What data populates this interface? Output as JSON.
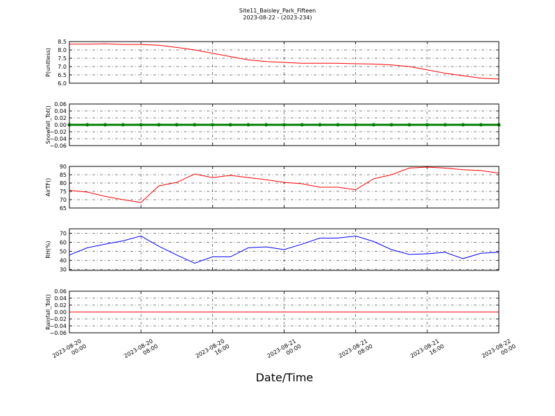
{
  "title": "Site11_Baisley_Park_Fifteen",
  "subtitle": "2023-08-22 - (2023-234)",
  "xlabel": "Date/Time",
  "chart_data": [
    {
      "type": "line",
      "ylabel": "P(unitless)",
      "grid": true,
      "x": [
        "2023-08-20 00:00",
        "2023-08-20 02:00",
        "2023-08-20 04:00",
        "2023-08-20 06:00",
        "2023-08-20 08:00",
        "2023-08-20 10:00",
        "2023-08-20 12:00",
        "2023-08-20 14:00",
        "2023-08-20 16:00",
        "2023-08-20 18:00",
        "2023-08-20 20:00",
        "2023-08-20 22:00",
        "2023-08-21 00:00",
        "2023-08-21 02:00",
        "2023-08-21 04:00",
        "2023-08-21 06:00",
        "2023-08-21 08:00",
        "2023-08-21 10:00",
        "2023-08-21 12:00",
        "2023-08-21 14:00",
        "2023-08-21 16:00",
        "2023-08-21 18:00",
        "2023-08-21 20:00",
        "2023-08-21 22:00",
        "2023-08-22 00:00"
      ],
      "xlim": [
        "2023-08-20 00:00",
        "2023-08-22 00:00"
      ],
      "xticks": [
        "2023-08-20 00:00",
        "2023-08-20 08:00",
        "2023-08-20 16:00",
        "2023-08-21 00:00",
        "2023-08-21 08:00",
        "2023-08-21 16:00",
        "2023-08-22 00:00"
      ],
      "ylim": [
        6,
        8.5
      ],
      "yticks": [
        {
          "value": 6,
          "label": "6.0"
        },
        6.5,
        {
          "value": 7,
          "label": "7.0"
        },
        7.5,
        {
          "value": 8,
          "label": "8.0"
        },
        8.5
      ],
      "series": [
        {
          "color": "#ff0000",
          "values": [
            8.35,
            8.35,
            8.37,
            8.33,
            8.33,
            8.28,
            8.15,
            8.0,
            7.8,
            7.6,
            7.4,
            7.3,
            7.25,
            7.2,
            7.2,
            7.2,
            7.17,
            7.15,
            7.1,
            7.0,
            6.8,
            6.6,
            6.45,
            6.3,
            6.25
          ]
        }
      ]
    },
    {
      "type": "line",
      "ylabel": "Snowfall_Tot()",
      "grid": true,
      "markers": true,
      "x": [
        "2023-08-20 00:00",
        "2023-08-20 02:00",
        "2023-08-20 04:00",
        "2023-08-20 06:00",
        "2023-08-20 08:00",
        "2023-08-20 10:00",
        "2023-08-20 12:00",
        "2023-08-20 14:00",
        "2023-08-20 16:00",
        "2023-08-20 18:00",
        "2023-08-20 20:00",
        "2023-08-20 22:00",
        "2023-08-21 00:00",
        "2023-08-21 02:00",
        "2023-08-21 04:00",
        "2023-08-21 06:00",
        "2023-08-21 08:00",
        "2023-08-21 10:00",
        "2023-08-21 12:00",
        "2023-08-21 14:00",
        "2023-08-21 16:00",
        "2023-08-21 18:00",
        "2023-08-21 20:00",
        "2023-08-21 22:00",
        "2023-08-22 00:00"
      ],
      "xlim": [
        "2023-08-20 00:00",
        "2023-08-22 00:00"
      ],
      "xticks": [
        "2023-08-20 00:00",
        "2023-08-20 08:00",
        "2023-08-20 16:00",
        "2023-08-21 00:00",
        "2023-08-21 08:00",
        "2023-08-21 16:00",
        "2023-08-22 00:00"
      ],
      "ylim": [
        -0.06,
        0.06
      ],
      "yticks": [
        {
          "value": -0.06,
          "label": "−0.06"
        },
        {
          "value": -0.04,
          "label": "−0.04"
        },
        {
          "value": -0.02,
          "label": "−0.02"
        },
        {
          "value": 0,
          "label": "0.00"
        },
        0.02,
        0.04,
        0.06
      ],
      "series": [
        {
          "color": "#008000",
          "values": [
            0,
            0,
            0,
            0,
            0,
            0,
            0,
            0,
            0,
            0,
            0,
            0,
            0,
            0,
            0,
            0,
            0,
            0,
            0,
            0,
            0,
            0,
            0,
            0,
            0
          ]
        }
      ]
    },
    {
      "type": "line",
      "ylabel": "AirTF()",
      "grid": true,
      "x": [
        "2023-08-20 00:00",
        "2023-08-20 02:00",
        "2023-08-20 04:00",
        "2023-08-20 06:00",
        "2023-08-20 08:00",
        "2023-08-20 10:00",
        "2023-08-20 12:00",
        "2023-08-20 14:00",
        "2023-08-20 16:00",
        "2023-08-20 18:00",
        "2023-08-20 20:00",
        "2023-08-20 22:00",
        "2023-08-21 00:00",
        "2023-08-21 02:00",
        "2023-08-21 04:00",
        "2023-08-21 06:00",
        "2023-08-21 08:00",
        "2023-08-21 10:00",
        "2023-08-21 12:00",
        "2023-08-21 14:00",
        "2023-08-21 16:00",
        "2023-08-21 18:00",
        "2023-08-21 20:00",
        "2023-08-21 22:00",
        "2023-08-22 00:00"
      ],
      "xlim": [
        "2023-08-20 00:00",
        "2023-08-22 00:00"
      ],
      "xticks": [
        "2023-08-20 00:00",
        "2023-08-20 08:00",
        "2023-08-20 16:00",
        "2023-08-21 00:00",
        "2023-08-21 08:00",
        "2023-08-21 16:00",
        "2023-08-22 00:00"
      ],
      "ylim": [
        65,
        90
      ],
      "yticks": [
        65,
        70,
        75,
        80,
        85,
        90
      ],
      "series": [
        {
          "color": "#ff0000",
          "values": [
            75.6,
            74.6,
            72,
            70,
            68.3,
            78.3,
            80.4,
            85.4,
            83.3,
            84.6,
            83.3,
            82,
            80.4,
            79.6,
            77.5,
            77.5,
            76,
            82.5,
            85,
            89,
            89.6,
            89,
            88,
            87.5,
            86
          ]
        }
      ]
    },
    {
      "type": "line",
      "ylabel": "RH(%)",
      "grid": true,
      "x": [
        "2023-08-20 00:00",
        "2023-08-20 02:00",
        "2023-08-20 04:00",
        "2023-08-20 06:00",
        "2023-08-20 08:00",
        "2023-08-20 10:00",
        "2023-08-20 12:00",
        "2023-08-20 14:00",
        "2023-08-20 16:00",
        "2023-08-20 18:00",
        "2023-08-20 20:00",
        "2023-08-20 22:00",
        "2023-08-21 00:00",
        "2023-08-21 02:00",
        "2023-08-21 04:00",
        "2023-08-21 06:00",
        "2023-08-21 08:00",
        "2023-08-21 10:00",
        "2023-08-21 12:00",
        "2023-08-21 14:00",
        "2023-08-21 16:00",
        "2023-08-21 18:00",
        "2023-08-21 20:00",
        "2023-08-21 22:00",
        "2023-08-22 00:00"
      ],
      "xlim": [
        "2023-08-20 00:00",
        "2023-08-22 00:00"
      ],
      "xticks": [
        "2023-08-20 00:00",
        "2023-08-20 08:00",
        "2023-08-20 16:00",
        "2023-08-21 00:00",
        "2023-08-21 08:00",
        "2023-08-21 16:00",
        "2023-08-22 00:00"
      ],
      "ylim": [
        29,
        75
      ],
      "yticks": [
        30,
        40,
        50,
        60,
        70
      ],
      "series": [
        {
          "color": "#0000ff",
          "values": [
            46,
            54,
            58,
            61.7,
            67,
            55.7,
            46,
            37,
            44,
            44,
            54,
            55,
            52,
            58,
            64.7,
            64.7,
            67,
            61,
            52,
            46.6,
            47.4,
            49,
            42,
            48,
            49
          ]
        }
      ]
    },
    {
      "type": "line",
      "ylabel": "Rainfall_Tot()",
      "grid": true,
      "x": [
        "2023-08-20 00:00",
        "2023-08-20 02:00",
        "2023-08-20 04:00",
        "2023-08-20 06:00",
        "2023-08-20 08:00",
        "2023-08-20 10:00",
        "2023-08-20 12:00",
        "2023-08-20 14:00",
        "2023-08-20 16:00",
        "2023-08-20 18:00",
        "2023-08-20 20:00",
        "2023-08-20 22:00",
        "2023-08-21 00:00",
        "2023-08-21 02:00",
        "2023-08-21 04:00",
        "2023-08-21 06:00",
        "2023-08-21 08:00",
        "2023-08-21 10:00",
        "2023-08-21 12:00",
        "2023-08-21 14:00",
        "2023-08-21 16:00",
        "2023-08-21 18:00",
        "2023-08-21 20:00",
        "2023-08-21 22:00",
        "2023-08-22 00:00"
      ],
      "xlim": [
        "2023-08-20 00:00",
        "2023-08-22 00:00"
      ],
      "xticks": [
        "2023-08-20 00:00",
        "2023-08-20 08:00",
        "2023-08-20 16:00",
        "2023-08-21 00:00",
        "2023-08-21 08:00",
        "2023-08-21 16:00",
        "2023-08-22 00:00"
      ],
      "xtick_labels": true,
      "ylim": [
        -0.06,
        0.06
      ],
      "yticks": [
        {
          "value": -0.06,
          "label": "−0.06"
        },
        {
          "value": -0.04,
          "label": "−0.04"
        },
        {
          "value": -0.02,
          "label": "−0.02"
        },
        {
          "value": 0,
          "label": "0.00"
        },
        0.02,
        0.04,
        0.06
      ],
      "series": [
        {
          "color": "#ff0000",
          "values": [
            0,
            0,
            0,
            0,
            0,
            0,
            0,
            0,
            0,
            0,
            0,
            0,
            0,
            0,
            0,
            0,
            0,
            0,
            0,
            0,
            0,
            0,
            0,
            0,
            0
          ]
        }
      ]
    }
  ]
}
